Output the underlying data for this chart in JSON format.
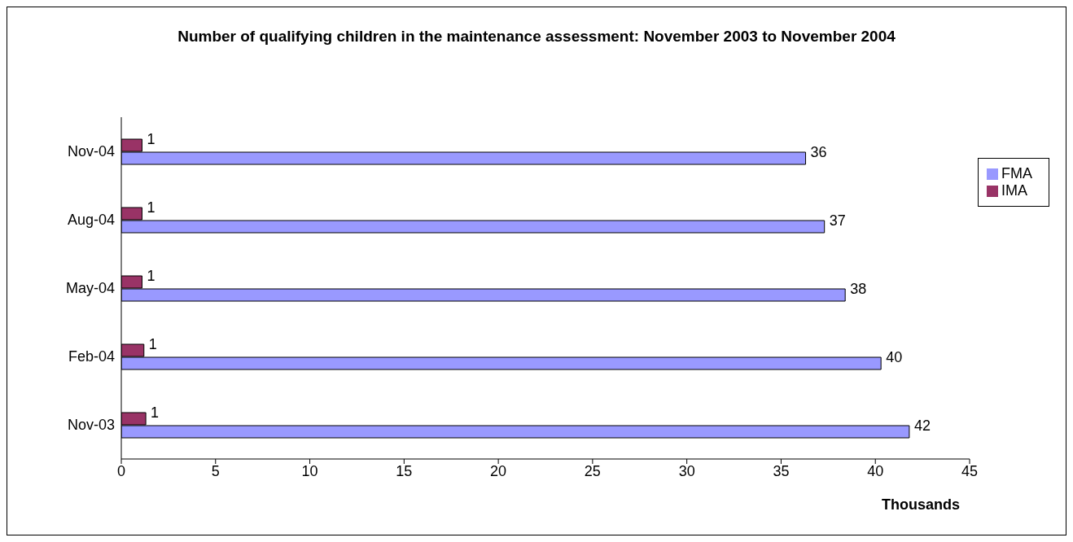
{
  "chart_data": {
    "type": "bar",
    "orientation": "horizontal",
    "title": "Number of qualifying children in the maintenance assessment: November 2003 to November 2004",
    "xlabel": "Thousands",
    "categories": [
      "Nov-04",
      "Aug-04",
      "May-04",
      "Feb-04",
      "Nov-03"
    ],
    "series": [
      {
        "name": "IMA",
        "color": "#993366",
        "values": [
          1.1,
          1.1,
          1.1,
          1.2,
          1.3
        ],
        "value_labels": [
          "1",
          "1",
          "1",
          "1",
          "1"
        ]
      },
      {
        "name": "FMA",
        "color": "#9999ff",
        "values": [
          36.3,
          37.3,
          38.4,
          40.3,
          41.8
        ],
        "value_labels": [
          "36",
          "37",
          "38",
          "40",
          "42"
        ]
      }
    ],
    "xlim": [
      0,
      45
    ],
    "xticks": [
      0,
      5,
      10,
      15,
      20,
      25,
      30,
      35,
      40,
      45
    ],
    "grid": false,
    "legend": "right"
  }
}
